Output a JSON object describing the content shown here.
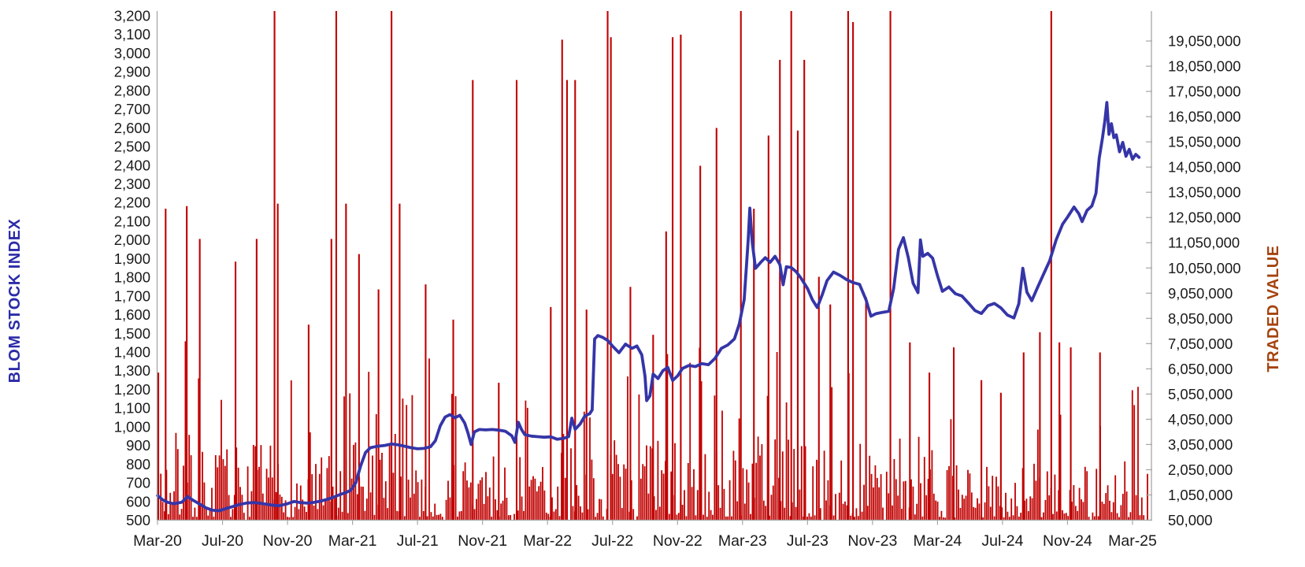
{
  "chart_data": {
    "type": "combo-line-bar",
    "title": "",
    "axes": {
      "left": {
        "title": "BLOM STOCK INDEX",
        "title_color": "#2B2BA8",
        "min": 500,
        "max": 3200,
        "step": 100,
        "tick_labels": [
          "3,200",
          "3,100",
          "3,000",
          "2,900",
          "2,800",
          "2,700",
          "2,600",
          "2,500",
          "2,400",
          "2,300",
          "2,200",
          "2,100",
          "2,000",
          "1,900",
          "1,800",
          "1,700",
          "1,600",
          "1,500",
          "1,400",
          "1,300",
          "1,200",
          "1,100",
          "1,000",
          "900",
          "800",
          "700",
          "600",
          "500"
        ]
      },
      "right": {
        "title": "TRADED VALUE",
        "title_color": "#A5430E",
        "min": 50000,
        "max": 20050000,
        "step": 1000000,
        "tick_labels": [
          "19,050,000",
          "18,050,000",
          "17,050,000",
          "16,050,000",
          "15,050,000",
          "14,050,000",
          "13,050,000",
          "12,050,000",
          "11,050,000",
          "10,050,000",
          "9,050,000",
          "8,050,000",
          "7,050,000",
          "6,050,000",
          "5,050,000",
          "4,050,000",
          "3,050,000",
          "2,050,000",
          "1,050,000",
          "50,000"
        ]
      },
      "x": {
        "months_span": 61,
        "tick_every_months": 4,
        "tick_labels": [
          "Mar-20",
          "Jul-20",
          "Nov-20",
          "Mar-21",
          "Jul-21",
          "Nov-21",
          "Mar-22",
          "Jul-22",
          "Nov-22",
          "Mar-23",
          "Jul-23",
          "Nov-23",
          "Mar-24",
          "Jul-24",
          "Nov-24",
          "Mar-25"
        ]
      }
    },
    "series": [
      {
        "name": "BLOM STOCK INDEX",
        "type": "line",
        "axis": "left",
        "color": "#3535A8",
        "points_month_value": [
          [
            0,
            632
          ],
          [
            0.3,
            610
          ],
          [
            0.6,
            596
          ],
          [
            1.0,
            588
          ],
          [
            1.5,
            596
          ],
          [
            1.85,
            626
          ],
          [
            2.2,
            606
          ],
          [
            2.6,
            586
          ],
          [
            3.0,
            565
          ],
          [
            3.4,
            553
          ],
          [
            3.8,
            550
          ],
          [
            4.2,
            562
          ],
          [
            4.6,
            572
          ],
          [
            5.0,
            583
          ],
          [
            5.5,
            592
          ],
          [
            6.0,
            594
          ],
          [
            6.5,
            588
          ],
          [
            7.0,
            581
          ],
          [
            7.5,
            577
          ],
          [
            8.0,
            588
          ],
          [
            8.4,
            600
          ],
          [
            8.8,
            594
          ],
          [
            9.2,
            591
          ],
          [
            9.6,
            595
          ],
          [
            10.0,
            601
          ],
          [
            10.4,
            610
          ],
          [
            10.8,
            622
          ],
          [
            11.2,
            636
          ],
          [
            11.6,
            648
          ],
          [
            11.9,
            660
          ],
          [
            12.2,
            700
          ],
          [
            12.5,
            790
          ],
          [
            12.8,
            862
          ],
          [
            13.1,
            888
          ],
          [
            13.5,
            895
          ],
          [
            14.0,
            900
          ],
          [
            14.4,
            908
          ],
          [
            14.8,
            903
          ],
          [
            15.2,
            896
          ],
          [
            15.6,
            888
          ],
          [
            16.0,
            882
          ],
          [
            16.4,
            884
          ],
          [
            16.8,
            893
          ],
          [
            17.1,
            925
          ],
          [
            17.4,
            1005
          ],
          [
            17.7,
            1052
          ],
          [
            18.0,
            1065
          ],
          [
            18.3,
            1048
          ],
          [
            18.6,
            1061
          ],
          [
            18.9,
            1020
          ],
          [
            19.1,
            968
          ],
          [
            19.3,
            905
          ],
          [
            19.5,
            972
          ],
          [
            19.8,
            985
          ],
          [
            20.2,
            983
          ],
          [
            20.6,
            985
          ],
          [
            21.0,
            982
          ],
          [
            21.4,
            976
          ],
          [
            21.8,
            952
          ],
          [
            22.0,
            916
          ],
          [
            22.2,
            1024
          ],
          [
            22.4,
            985
          ],
          [
            22.6,
            958
          ],
          [
            23.0,
            950
          ],
          [
            23.4,
            947
          ],
          [
            23.8,
            944
          ],
          [
            24.2,
            946
          ],
          [
            24.6,
            933
          ],
          [
            25.0,
            938
          ],
          [
            25.3,
            947
          ],
          [
            25.5,
            1046
          ],
          [
            25.7,
            986
          ],
          [
            26.0,
            1014
          ],
          [
            26.3,
            1058
          ],
          [
            26.6,
            1070
          ],
          [
            26.75,
            1090
          ],
          [
            26.9,
            1470
          ],
          [
            27.1,
            1488
          ],
          [
            27.4,
            1478
          ],
          [
            27.7,
            1462
          ],
          [
            28.0,
            1432
          ],
          [
            28.4,
            1396
          ],
          [
            28.8,
            1442
          ],
          [
            29.2,
            1420
          ],
          [
            29.5,
            1432
          ],
          [
            29.8,
            1385
          ],
          [
            30.0,
            1270
          ],
          [
            30.1,
            1140
          ],
          [
            30.3,
            1165
          ],
          [
            30.5,
            1282
          ],
          [
            30.8,
            1258
          ],
          [
            31.1,
            1300
          ],
          [
            31.4,
            1318
          ],
          [
            31.7,
            1248
          ],
          [
            32.0,
            1272
          ],
          [
            32.3,
            1312
          ],
          [
            32.7,
            1328
          ],
          [
            33.1,
            1322
          ],
          [
            33.5,
            1338
          ],
          [
            33.9,
            1332
          ],
          [
            34.3,
            1365
          ],
          [
            34.7,
            1420
          ],
          [
            35.1,
            1438
          ],
          [
            35.5,
            1470
          ],
          [
            35.8,
            1550
          ],
          [
            36.1,
            1680
          ],
          [
            36.35,
            2000
          ],
          [
            36.45,
            2170
          ],
          [
            36.6,
            1985
          ],
          [
            36.8,
            1848
          ],
          [
            37.1,
            1878
          ],
          [
            37.4,
            1905
          ],
          [
            37.7,
            1880
          ],
          [
            38.0,
            1912
          ],
          [
            38.3,
            1868
          ],
          [
            38.5,
            1760
          ],
          [
            38.7,
            1856
          ],
          [
            39.0,
            1852
          ],
          [
            39.3,
            1830
          ],
          [
            39.6,
            1795
          ],
          [
            40.0,
            1740
          ],
          [
            40.3,
            1680
          ],
          [
            40.6,
            1638
          ],
          [
            40.9,
            1705
          ],
          [
            41.2,
            1782
          ],
          [
            41.6,
            1828
          ],
          [
            42.0,
            1810
          ],
          [
            42.4,
            1788
          ],
          [
            42.8,
            1772
          ],
          [
            43.2,
            1762
          ],
          [
            43.6,
            1680
          ],
          [
            43.9,
            1592
          ],
          [
            44.2,
            1605
          ],
          [
            44.6,
            1612
          ],
          [
            45.0,
            1618
          ],
          [
            45.3,
            1740
          ],
          [
            45.6,
            1950
          ],
          [
            45.9,
            2012
          ],
          [
            46.2,
            1905
          ],
          [
            46.5,
            1768
          ],
          [
            46.8,
            1718
          ],
          [
            46.95,
            2000
          ],
          [
            47.1,
            1912
          ],
          [
            47.4,
            1928
          ],
          [
            47.7,
            1902
          ],
          [
            48.0,
            1808
          ],
          [
            48.3,
            1725
          ],
          [
            48.7,
            1748
          ],
          [
            49.1,
            1712
          ],
          [
            49.5,
            1700
          ],
          [
            49.9,
            1662
          ],
          [
            50.3,
            1622
          ],
          [
            50.7,
            1606
          ],
          [
            51.1,
            1648
          ],
          [
            51.5,
            1660
          ],
          [
            51.9,
            1636
          ],
          [
            52.3,
            1598
          ],
          [
            52.7,
            1582
          ],
          [
            53.0,
            1658
          ],
          [
            53.25,
            1848
          ],
          [
            53.5,
            1720
          ],
          [
            53.8,
            1675
          ],
          [
            54.1,
            1735
          ],
          [
            54.5,
            1812
          ],
          [
            54.9,
            1888
          ],
          [
            55.3,
            2000
          ],
          [
            55.7,
            2085
          ],
          [
            56.0,
            2122
          ],
          [
            56.4,
            2176
          ],
          [
            56.7,
            2140
          ],
          [
            56.9,
            2098
          ],
          [
            57.2,
            2158
          ],
          [
            57.5,
            2182
          ],
          [
            57.75,
            2250
          ],
          [
            57.95,
            2438
          ],
          [
            58.15,
            2545
          ],
          [
            58.3,
            2638
          ],
          [
            58.42,
            2736
          ],
          [
            58.55,
            2565
          ],
          [
            58.7,
            2622
          ],
          [
            58.85,
            2548
          ],
          [
            59.0,
            2562
          ],
          [
            59.2,
            2472
          ],
          [
            59.4,
            2522
          ],
          [
            59.6,
            2448
          ],
          [
            59.8,
            2485
          ],
          [
            60.0,
            2432
          ],
          [
            60.2,
            2458
          ],
          [
            60.4,
            2442
          ]
        ]
      },
      {
        "name": "TRADED VALUE",
        "type": "bar",
        "axis": "right",
        "color": "#C00000",
        "major_spikes_month_value": [
          [
            0.05,
            5900000
          ],
          [
            0.5,
            12400000
          ],
          [
            1.8,
            12500000
          ],
          [
            2.6,
            11200000
          ],
          [
            4.8,
            10300000
          ],
          [
            6.1,
            11200000
          ],
          [
            7.2,
            20600000
          ],
          [
            7.4,
            12600000
          ],
          [
            9.3,
            7800000
          ],
          [
            10.7,
            11200000
          ],
          [
            11.0,
            20600000
          ],
          [
            11.6,
            12600000
          ],
          [
            12.4,
            10600000
          ],
          [
            13.6,
            9200000
          ],
          [
            14.4,
            20600000
          ],
          [
            14.9,
            12600000
          ],
          [
            16.5,
            9400000
          ],
          [
            18.2,
            8000000
          ],
          [
            19.4,
            17500000
          ],
          [
            21.0,
            5500000
          ],
          [
            22.1,
            17500000
          ],
          [
            24.2,
            8500000
          ],
          [
            24.9,
            19100000
          ],
          [
            25.2,
            17500000
          ],
          [
            25.7,
            17500000
          ],
          [
            26.4,
            8400000
          ],
          [
            27.7,
            20600000
          ],
          [
            27.9,
            19200000
          ],
          [
            29.1,
            9300000
          ],
          [
            30.5,
            7400000
          ],
          [
            31.3,
            11500000
          ],
          [
            31.7,
            19200000
          ],
          [
            32.2,
            19300000
          ],
          [
            33.4,
            14100000
          ],
          [
            34.4,
            15600000
          ],
          [
            35.9,
            20600000
          ],
          [
            36.7,
            12400000
          ],
          [
            37.6,
            15300000
          ],
          [
            38.3,
            18300000
          ],
          [
            39.0,
            20600000
          ],
          [
            39.4,
            15500000
          ],
          [
            39.8,
            18300000
          ],
          [
            40.7,
            9700000
          ],
          [
            41.4,
            8600000
          ],
          [
            42.5,
            20600000
          ],
          [
            42.8,
            19800000
          ],
          [
            43.6,
            8900000
          ],
          [
            45.1,
            20600000
          ],
          [
            46.3,
            7100000
          ],
          [
            47.5,
            5900000
          ],
          [
            49.0,
            6900000
          ],
          [
            50.7,
            5600000
          ],
          [
            51.9,
            5100000
          ],
          [
            53.3,
            6700000
          ],
          [
            54.3,
            7500000
          ],
          [
            55.0,
            20600000
          ],
          [
            55.5,
            7100000
          ],
          [
            56.2,
            6900000
          ],
          [
            58.0,
            6700000
          ]
        ],
        "background_profile_millions": [
          {
            "to_m": 2,
            "base": 3.6,
            "spike_p": 0.1,
            "spike_max": 7.5
          },
          {
            "to_m": 8,
            "base": 3.0,
            "spike_p": 0.08,
            "spike_max": 6.5
          },
          {
            "to_m": 12,
            "base": 2.6,
            "spike_p": 0.07,
            "spike_max": 6.0
          },
          {
            "to_m": 16,
            "base": 3.2,
            "spike_p": 0.09,
            "spike_max": 7.0
          },
          {
            "to_m": 20,
            "base": 3.0,
            "spike_p": 0.08,
            "spike_max": 6.5
          },
          {
            "to_m": 24,
            "base": 2.8,
            "spike_p": 0.07,
            "spike_max": 6.0
          },
          {
            "to_m": 27,
            "base": 3.0,
            "spike_p": 0.08,
            "spike_max": 6.5
          },
          {
            "to_m": 32,
            "base": 3.4,
            "spike_p": 0.1,
            "spike_max": 7.5
          },
          {
            "to_m": 36,
            "base": 3.0,
            "spike_p": 0.09,
            "spike_max": 7.0
          },
          {
            "to_m": 40,
            "base": 3.2,
            "spike_p": 0.09,
            "spike_max": 7.0
          },
          {
            "to_m": 44,
            "base": 3.0,
            "spike_p": 0.08,
            "spike_max": 6.5
          },
          {
            "to_m": 48,
            "base": 2.8,
            "spike_p": 0.07,
            "spike_max": 6.0
          },
          {
            "to_m": 52,
            "base": 2.2,
            "spike_p": 0.05,
            "spike_max": 5.0
          },
          {
            "to_m": 56,
            "base": 2.6,
            "spike_p": 0.06,
            "spike_max": 5.5
          },
          {
            "to_m": 61,
            "base": 2.4,
            "spike_p": 0.06,
            "spike_max": 5.5
          }
        ]
      }
    ],
    "layout_hints": {
      "grid": "off",
      "legend": "none",
      "plot_background": "#ffffff",
      "axis_line_color": "#A6A6A6"
    }
  }
}
